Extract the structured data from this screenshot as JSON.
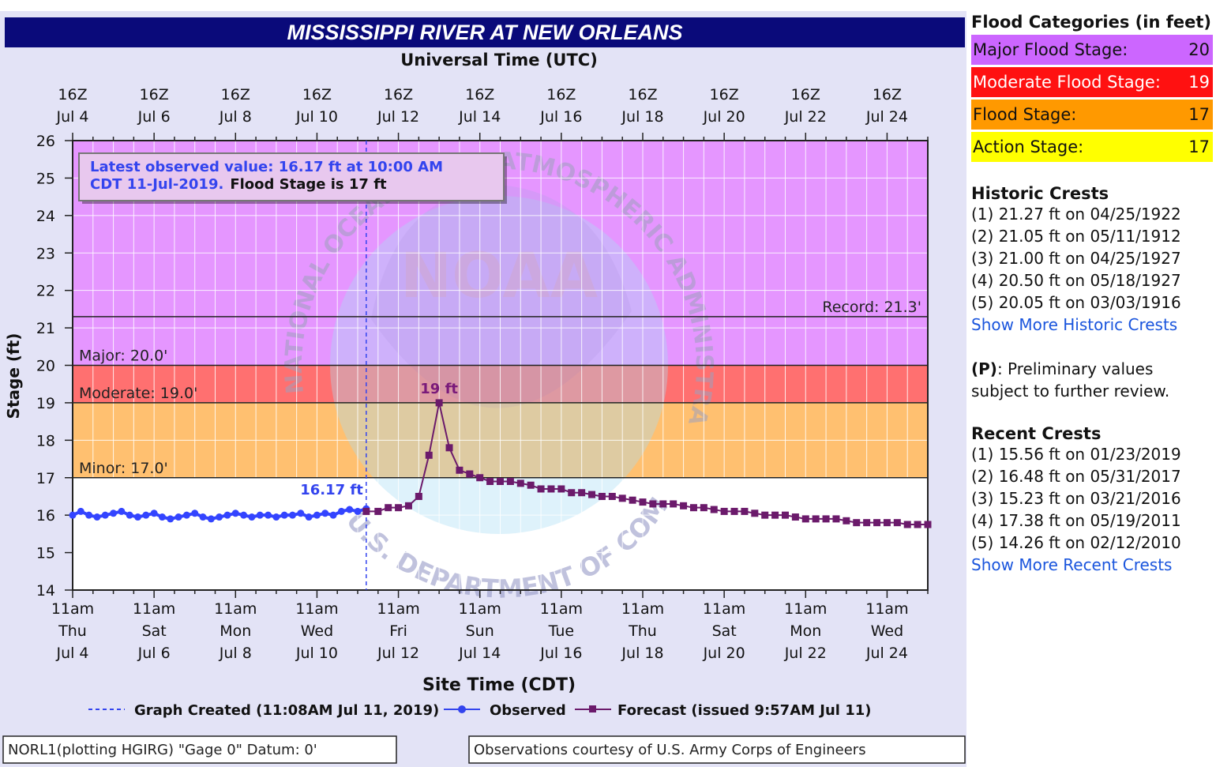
{
  "chart_data": {
    "type": "line",
    "title": "MISSISSIPPI RIVER AT NEW ORLEANS",
    "top_axis_label": "Universal Time (UTC)",
    "top_ticks": [
      {
        "time": "16Z",
        "date": "Jul  4"
      },
      {
        "time": "16Z",
        "date": "Jul  6"
      },
      {
        "time": "16Z",
        "date": "Jul  8"
      },
      {
        "time": "16Z",
        "date": "Jul 10"
      },
      {
        "time": "16Z",
        "date": "Jul 12"
      },
      {
        "time": "16Z",
        "date": "Jul 14"
      },
      {
        "time": "16Z",
        "date": "Jul 16"
      },
      {
        "time": "16Z",
        "date": "Jul 18"
      },
      {
        "time": "16Z",
        "date": "Jul 20"
      },
      {
        "time": "16Z",
        "date": "Jul 22"
      },
      {
        "time": "16Z",
        "date": "Jul 24"
      }
    ],
    "bottom_ticks": [
      {
        "time": "11am",
        "day": "Thu",
        "date": "Jul 4"
      },
      {
        "time": "11am",
        "day": "Sat",
        "date": "Jul 6"
      },
      {
        "time": "11am",
        "day": "Mon",
        "date": "Jul 8"
      },
      {
        "time": "11am",
        "day": "Wed",
        "date": "Jul 10"
      },
      {
        "time": "11am",
        "day": "Fri",
        "date": "Jul 12"
      },
      {
        "time": "11am",
        "day": "Sun",
        "date": "Jul 14"
      },
      {
        "time": "11am",
        "day": "Tue",
        "date": "Jul 16"
      },
      {
        "time": "11am",
        "day": "Thu",
        "date": "Jul 18"
      },
      {
        "time": "11am",
        "day": "Sat",
        "date": "Jul 20"
      },
      {
        "time": "11am",
        "day": "Mon",
        "date": "Jul 22"
      },
      {
        "time": "11am",
        "day": "Wed",
        "date": "Jul 24"
      }
    ],
    "xlabel": "Site Time (CDT)",
    "ylabel": "Stage (ft)",
    "xlim": [
      4.0,
      25.0
    ],
    "ylim": [
      14,
      26
    ],
    "yticks": [
      14,
      15,
      16,
      17,
      18,
      19,
      20,
      21,
      22,
      23,
      24,
      25,
      26
    ],
    "grid": true,
    "bands": [
      {
        "name": "action-minor",
        "from": 17,
        "to": 19,
        "color": "#ffc070"
      },
      {
        "name": "moderate",
        "from": 19,
        "to": 20,
        "color": "#ff7070"
      },
      {
        "name": "major",
        "from": 20,
        "to": 26,
        "color": "#e596ff"
      }
    ],
    "stage_lines": [
      {
        "label": "Minor: 17.0'",
        "value": 17
      },
      {
        "label": "Moderate: 19.0'",
        "value": 19
      },
      {
        "label": "Major: 20.0'",
        "value": 20
      },
      {
        "label": "Record: 21.3'",
        "value": 21.3
      }
    ],
    "observed": {
      "name": "Observed",
      "color": "#3344ff",
      "x": [
        4.0,
        4.2,
        4.4,
        4.6,
        4.8,
        5.0,
        5.2,
        5.4,
        5.6,
        5.8,
        6.0,
        6.2,
        6.4,
        6.6,
        6.8,
        7.0,
        7.2,
        7.4,
        7.6,
        7.8,
        8.0,
        8.2,
        8.4,
        8.6,
        8.8,
        9.0,
        9.2,
        9.4,
        9.6,
        9.8,
        10.0,
        10.2,
        10.4,
        10.6,
        10.8,
        11.0,
        11.21
      ],
      "y": [
        16.0,
        16.1,
        16.0,
        15.95,
        16.0,
        16.05,
        16.1,
        16.0,
        15.95,
        16.0,
        16.05,
        15.95,
        15.9,
        15.95,
        16.0,
        16.05,
        15.95,
        15.9,
        15.95,
        16.0,
        16.05,
        16.0,
        15.95,
        16.0,
        16.0,
        15.95,
        16.0,
        16.0,
        16.05,
        15.95,
        16.0,
        16.05,
        16.0,
        16.1,
        16.15,
        16.1,
        16.17
      ]
    },
    "forecast": {
      "name": "Forecast (issued 9:57AM Jul 11)",
      "color": "#6b1a6b",
      "x": [
        11.21,
        11.5,
        11.75,
        12.0,
        12.25,
        12.5,
        12.75,
        13.0,
        13.25,
        13.5,
        13.75,
        14.0,
        14.25,
        14.5,
        14.75,
        15.0,
        15.25,
        15.5,
        15.75,
        16.0,
        16.25,
        16.5,
        16.75,
        17.0,
        17.25,
        17.5,
        17.75,
        18.0,
        18.25,
        18.5,
        18.75,
        19.0,
        19.25,
        19.5,
        19.75,
        20.0,
        20.25,
        20.5,
        20.75,
        21.0,
        21.25,
        21.5,
        21.75,
        22.0,
        22.25,
        22.5,
        22.75,
        23.0,
        23.25,
        23.5,
        23.75,
        24.0,
        24.25,
        24.5,
        24.75,
        25.0
      ],
      "y": [
        16.1,
        16.1,
        16.2,
        16.2,
        16.25,
        16.5,
        17.6,
        19.0,
        17.8,
        17.2,
        17.1,
        17.0,
        16.9,
        16.9,
        16.9,
        16.85,
        16.8,
        16.7,
        16.7,
        16.7,
        16.6,
        16.6,
        16.55,
        16.5,
        16.5,
        16.45,
        16.4,
        16.35,
        16.3,
        16.3,
        16.3,
        16.25,
        16.2,
        16.2,
        16.15,
        16.1,
        16.1,
        16.1,
        16.05,
        16.0,
        16.0,
        16.0,
        15.95,
        15.9,
        15.9,
        15.9,
        15.9,
        15.85,
        15.8,
        15.8,
        15.8,
        15.8,
        15.8,
        15.75,
        15.75,
        15.75
      ]
    },
    "observed_label": "16.17 ft",
    "crest_label": "19 ft",
    "crest_point": [
      13.0,
      19.0
    ],
    "created_x": 11.21,
    "info_box": {
      "observed_text_line1": "Latest observed value: 16.17 ft at 10:00 AM",
      "observed_text_line2": "CDT 11-Jul-2019.",
      "flood_text": "Flood Stage is 17 ft"
    },
    "legend": {
      "created": "Graph Created (11:08AM Jul 11, 2019)",
      "observed": "Observed",
      "forecast": "Forecast (issued 9:57AM Jul 11)",
      "placement": "bottom"
    },
    "watermark": {
      "ring_top": "NATIONAL OCEANIC AND ATMOSPHERIC ADMINISTRATION",
      "ring_bottom": "U.S. DEPARTMENT OF COMMERCE",
      "center": "NOAA"
    },
    "footer_left": "NORL1(plotting HGIRG) \"Gage 0\" Datum: 0'",
    "footer_right": "Observations courtesy of U.S. Army Corps of Engineers"
  },
  "sidebar": {
    "flood_categories_title": "Flood Categories (in feet)",
    "categories": [
      {
        "label": "Major Flood Stage:",
        "value": "20",
        "color": "#cc66ff"
      },
      {
        "label": "Moderate Flood Stage:",
        "value": "19",
        "color": "#ff1111"
      },
      {
        "label": "Flood Stage:",
        "value": "17",
        "color": "#ff9900"
      },
      {
        "label": "Action Stage:",
        "value": "17",
        "color": "#ffff00"
      }
    ],
    "historic_title": "Historic Crests",
    "historic": [
      "(1) 21.27 ft on 04/25/1922",
      "(2) 21.05 ft on 05/11/1912",
      "(3) 21.00 ft on 04/25/1927",
      "(4) 20.50 ft on 05/18/1927",
      "(5) 20.05 ft on 03/03/1916"
    ],
    "historic_link": "Show More Historic Crests",
    "prelim_key": "(P)",
    "prelim_text": ": Preliminary values subject to further review.",
    "recent_title": "Recent Crests",
    "recent": [
      "(1) 15.56 ft on 01/23/2019",
      "(2) 16.48 ft on 05/31/2017",
      "(3) 15.23 ft on 03/21/2016",
      "(4) 17.38 ft on 05/19/2011",
      "(5) 14.26 ft on 02/12/2010"
    ],
    "recent_link": "Show More Recent Crests"
  }
}
